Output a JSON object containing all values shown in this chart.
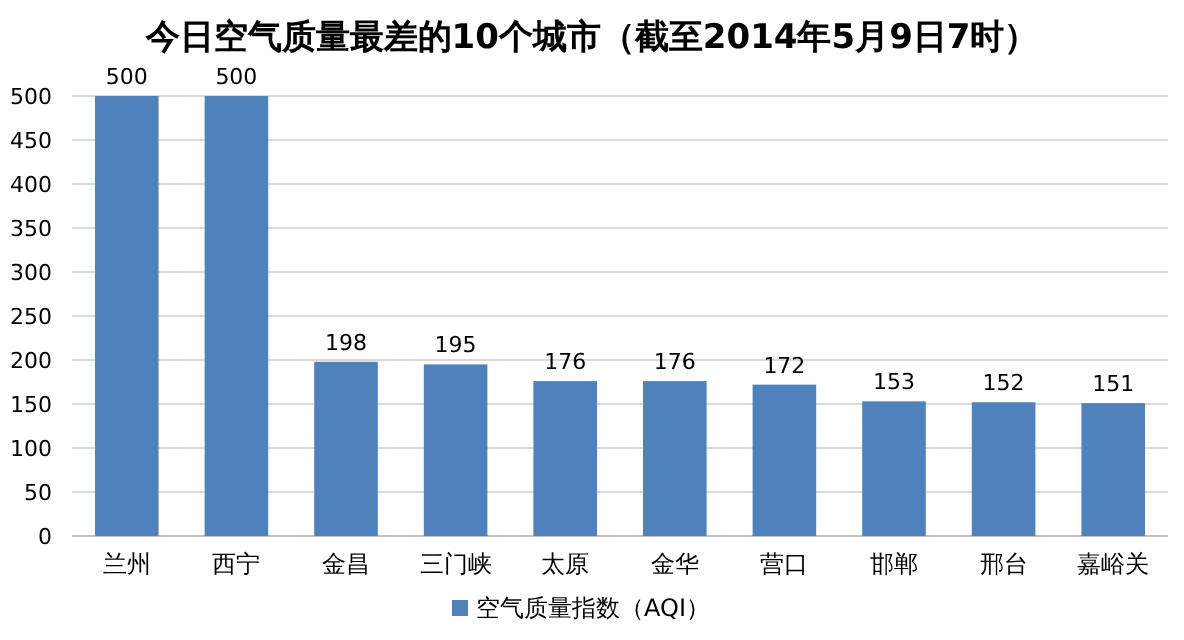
{
  "chart_data": {
    "type": "bar",
    "title": "今日空气质量最差的10个城市（截至2014年5月9日7时）",
    "categories": [
      "兰州",
      "西宁",
      "金昌",
      "三门峡",
      "太原",
      "金华",
      "营口",
      "邯郸",
      "邢台",
      "嘉峪关"
    ],
    "series": [
      {
        "name": "空气质量指数（AQI）",
        "color": "#4f81bd",
        "values": [
          500,
          500,
          198,
          195,
          176,
          176,
          172,
          153,
          152,
          151
        ]
      }
    ],
    "ylim": [
      0,
      500
    ],
    "yticks": [
      0,
      50,
      100,
      150,
      200,
      250,
      300,
      350,
      400,
      450,
      500
    ],
    "grid": "y",
    "legend": "bottom",
    "data_labels": true
  }
}
